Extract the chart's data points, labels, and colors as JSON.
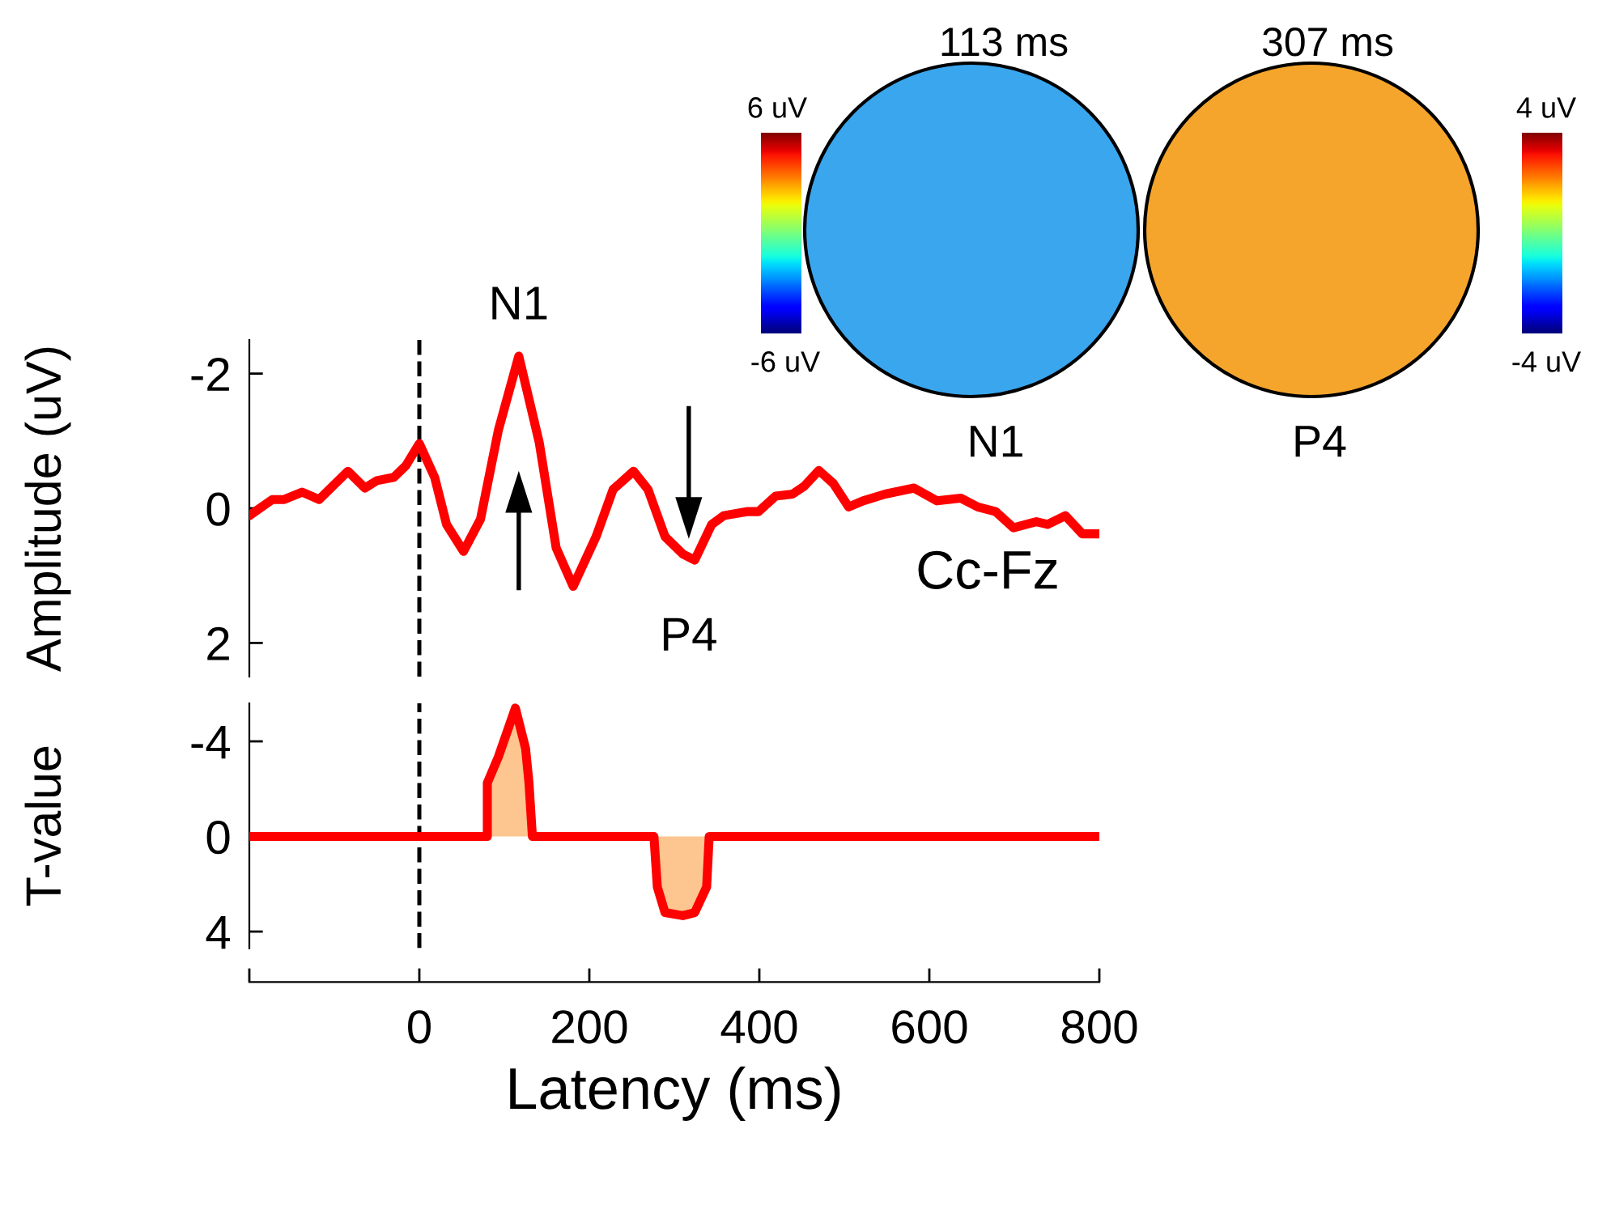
{
  "chart_data": [
    {
      "type": "line",
      "ylabel": "Amplitude (uV)",
      "xlim": [
        -200,
        800
      ],
      "ylim": [
        2.5,
        -2.5
      ],
      "yticks": [
        -2,
        0,
        2
      ],
      "tick_labels": "y",
      "grid": false,
      "legend": false,
      "x": [
        -200,
        -173,
        -159,
        -138,
        -118,
        -84,
        -64,
        -50,
        -30,
        -16,
        0,
        18,
        32,
        52,
        72,
        93,
        117,
        141,
        161,
        181,
        208,
        228,
        252,
        269,
        289,
        310,
        324,
        344,
        358,
        385,
        399,
        419,
        439,
        453,
        470,
        487,
        505,
        522,
        548,
        582,
        609,
        637,
        657,
        678,
        699,
        726,
        739,
        760,
        780,
        800
      ],
      "series": [
        {
          "color": "#ff0000",
          "values": [
            0.11,
            -0.13,
            -0.13,
            -0.24,
            -0.13,
            -0.55,
            -0.3,
            -0.41,
            -0.46,
            -0.63,
            -0.96,
            -0.46,
            0.24,
            0.64,
            0.16,
            -1.16,
            -2.26,
            -0.98,
            0.59,
            1.16,
            0.42,
            -0.28,
            -0.55,
            -0.28,
            0.42,
            0.68,
            0.77,
            0.24,
            0.11,
            0.05,
            0.05,
            -0.18,
            -0.21,
            -0.33,
            -0.56,
            -0.37,
            -0.02,
            -0.11,
            -0.21,
            -0.3,
            -0.11,
            -0.15,
            -0.02,
            0.05,
            0.29,
            0.2,
            0.24,
            0.11,
            0.38,
            0.38
          ]
        }
      ],
      "ref_lines": [
        {
          "axis": "x",
          "value": 0,
          "line_style": "dashed",
          "color": "#000000"
        }
      ],
      "annotations": [
        {
          "text": "N1",
          "x": 117,
          "y": -2.26
        },
        {
          "text": "P4",
          "x": 317,
          "y": 0.77
        },
        "Cc-Fz",
        "113 ms",
        "307 ms",
        "6 uV",
        "-6 uV",
        "4 uV",
        "-4 uV",
        "N1",
        "P4"
      ]
    },
    {
      "type": "area",
      "xlabel": "Latency (ms)",
      "ylabel": "T-value",
      "xlim": [
        -200,
        800
      ],
      "ylim": [
        4.7,
        -5.6
      ],
      "yticks": [
        -4,
        0,
        4
      ],
      "xticks": [
        {
          "value": -200,
          "label": null
        },
        0,
        200,
        400,
        600,
        800
      ],
      "grid": false,
      "legend": false,
      "x": [
        -200,
        80,
        80,
        93,
        113,
        125,
        129,
        133,
        276,
        280,
        289,
        310,
        324,
        338,
        341,
        800
      ],
      "series": [
        {
          "color": "#ff0000",
          "values": [
            0,
            0,
            -2.25,
            -3.35,
            -5.4,
            -3.7,
            -2.25,
            0,
            0,
            2.12,
            3.2,
            3.33,
            3.2,
            2.12,
            0,
            0
          ]
        }
      ],
      "ref_lines": [
        {
          "axis": "x",
          "value": 0,
          "line_style": "dashed",
          "color": "#000000"
        }
      ]
    }
  ]
}
